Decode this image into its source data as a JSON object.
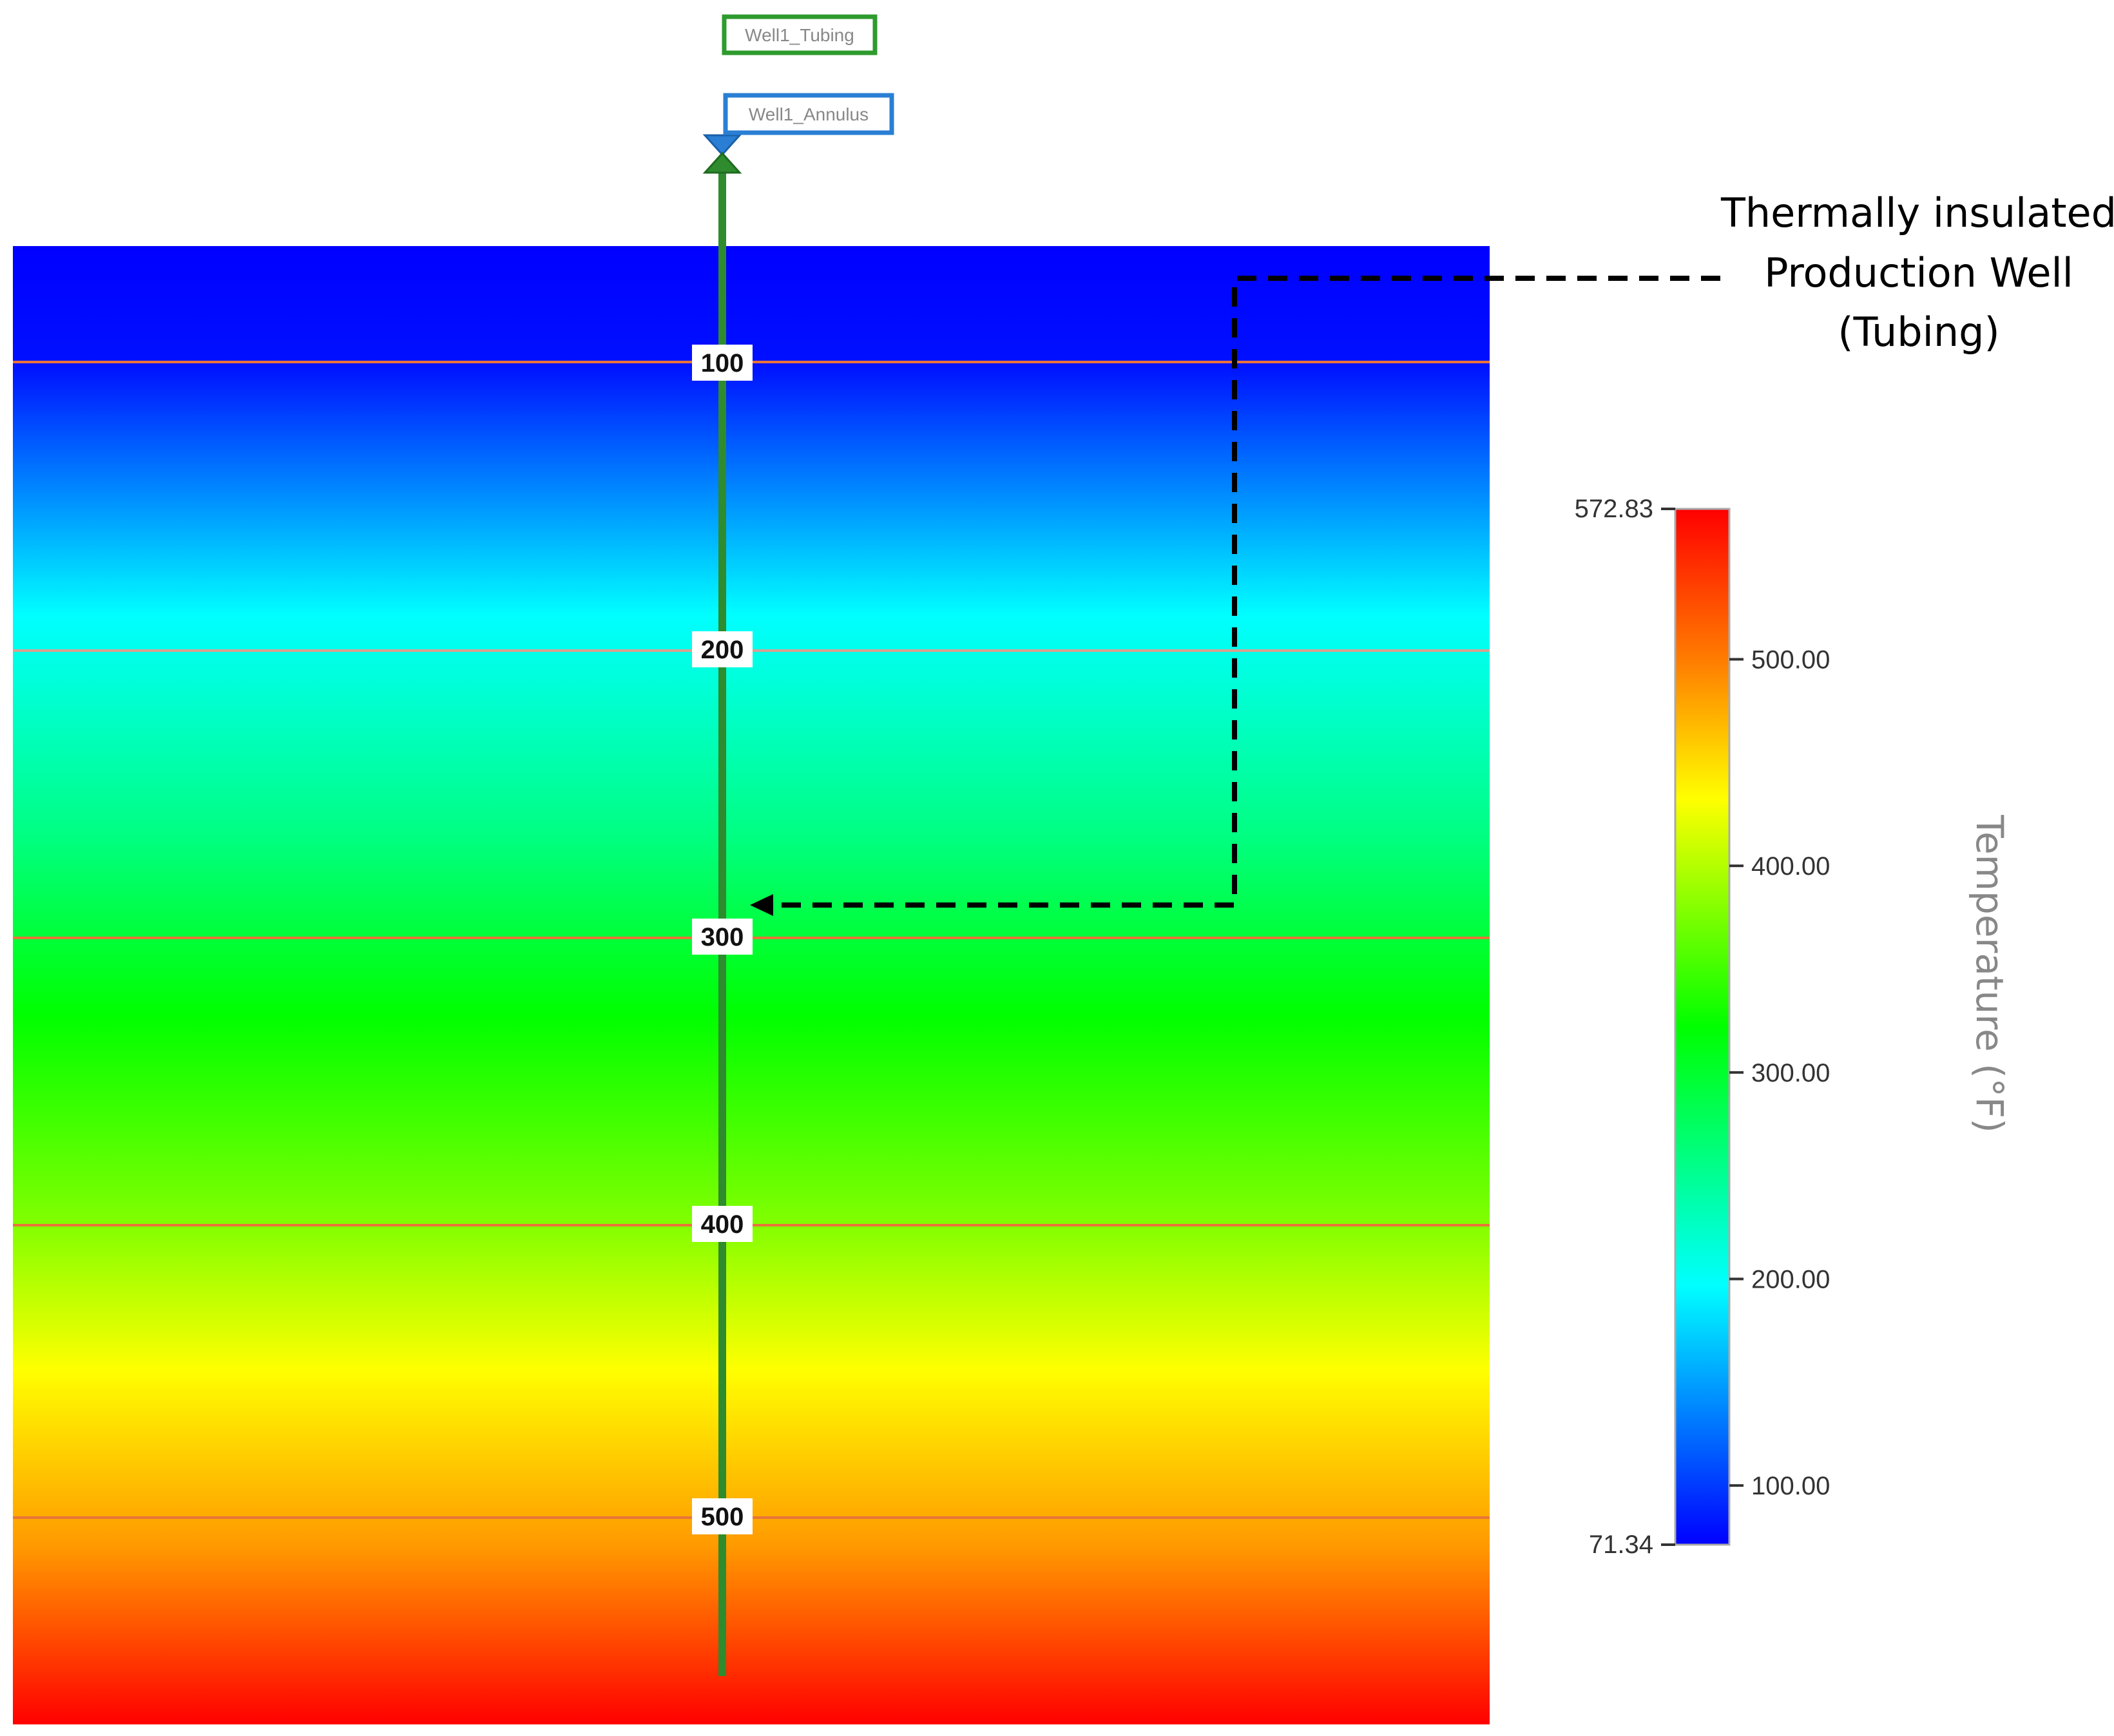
{
  "well": {
    "tubing_label": "Well1_Tubing",
    "annulus_label": "Well1_Annulus",
    "depth_markers": [
      "100",
      "200",
      "300",
      "400",
      "500"
    ],
    "tubing_color": "#2e8b2e",
    "annulus_color": "#2a7fd4"
  },
  "annotation": {
    "lines": [
      "Thermally insulated",
      "Production Well",
      "(Tubing)"
    ]
  },
  "colorbar": {
    "title": "Temperature (°F)",
    "max_label": "572.83",
    "min_label": "71.34",
    "min": 71.34,
    "max": 572.83,
    "ticks": [
      {
        "value": 500,
        "label": "500.00"
      },
      {
        "value": 400,
        "label": "400.00"
      },
      {
        "value": 300,
        "label": "300.00"
      },
      {
        "value": 200,
        "label": "200.00"
      },
      {
        "value": 100,
        "label": "100.00"
      }
    ]
  },
  "colors": {
    "top": "#0000ff",
    "cyan": "#00ffff",
    "green": "#00ff00",
    "yellow": "#ffff00",
    "bottom": "#ff0000",
    "layer_line": "#e8743a"
  }
}
